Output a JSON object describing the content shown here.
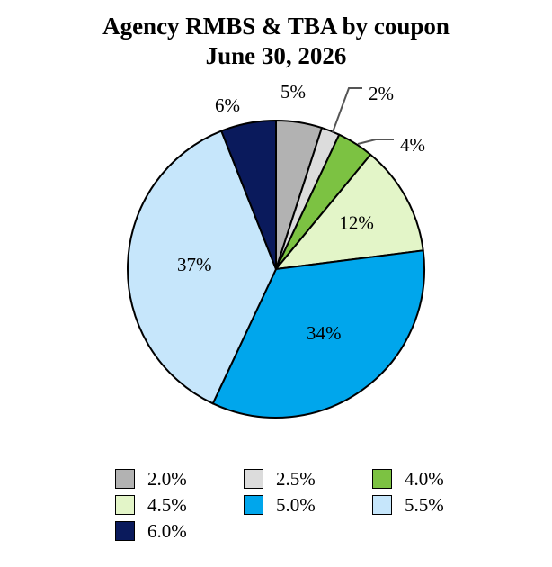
{
  "chart_data": {
    "type": "pie",
    "title": "Agency RMBS & TBA by coupon",
    "subtitle": "June 30, 2026",
    "slices": [
      {
        "label": "2.0%",
        "value": 5,
        "value_label": "5%",
        "color": "#b2b2b2"
      },
      {
        "label": "2.5%",
        "value": 2,
        "value_label": "2%",
        "color": "#dcdcdc"
      },
      {
        "label": "4.0%",
        "value": 4,
        "value_label": "4%",
        "color": "#7cc242"
      },
      {
        "label": "4.5%",
        "value": 12,
        "value_label": "12%",
        "color": "#e3f5c8"
      },
      {
        "label": "5.0%",
        "value": 34,
        "value_label": "34%",
        "color": "#00a6ec"
      },
      {
        "label": "5.5%",
        "value": 37,
        "value_label": "37%",
        "color": "#c6e6fb"
      },
      {
        "label": "6.0%",
        "value": 6,
        "value_label": "6%",
        "color": "#0a1a5c"
      }
    ],
    "legend_position": "bottom"
  }
}
